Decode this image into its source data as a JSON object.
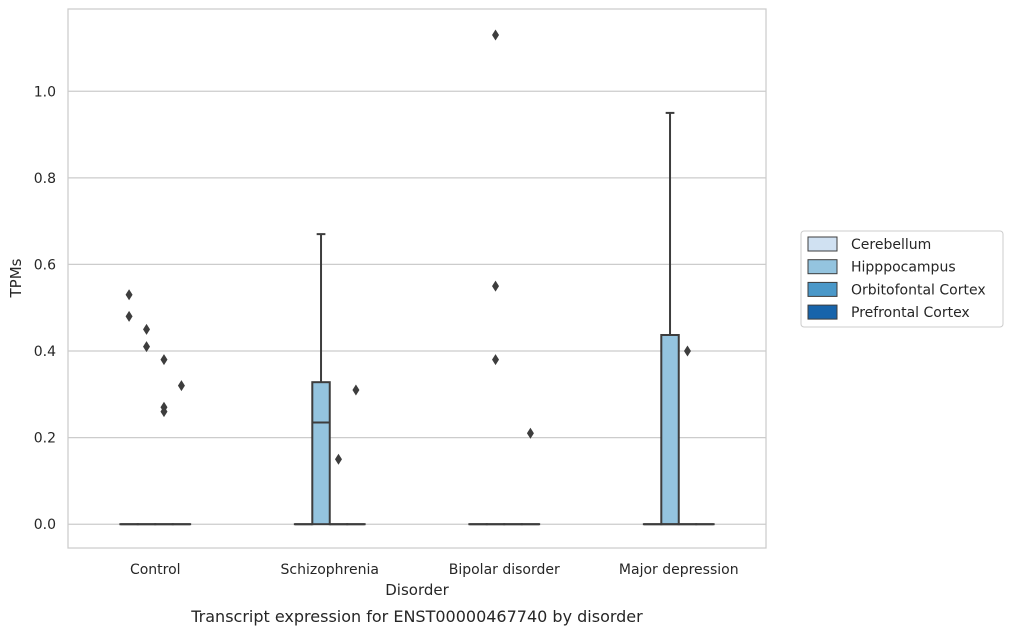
{
  "chart_data": {
    "type": "box",
    "caption": "Transcript expression for ENST00000467740 by disorder",
    "xlabel": "Disorder",
    "ylabel": "TPMs",
    "ylim": [
      -0.055,
      1.19
    ],
    "yticks": [
      0.0,
      0.2,
      0.4,
      0.6,
      0.8,
      1.0
    ],
    "ytick_labels": [
      "0.0",
      "0.2",
      "0.4",
      "0.6",
      "0.8",
      "1.0"
    ],
    "grid": "horizontal",
    "legend_placement": "right",
    "categories": [
      "Control",
      "Schizophrenia",
      "Bipolar disorder",
      "Major depression"
    ],
    "series": [
      {
        "name": "Cerebellum",
        "color": "#d0e1f2"
      },
      {
        "name": "Hipppocampus",
        "color": "#94c4df"
      },
      {
        "name": "Orbitofontal Cortex",
        "color": "#4a98c9"
      },
      {
        "name": "Prefrontal Cortex",
        "color": "#1764ab"
      }
    ],
    "boxes": [
      {
        "category": "Control",
        "series": "Cerebellum",
        "q1": 0,
        "median": 0,
        "q3": 0,
        "whisker_low": 0,
        "whisker_high": 0,
        "outliers": [
          0.53,
          0.48
        ]
      },
      {
        "category": "Control",
        "series": "Hipppocampus",
        "q1": 0,
        "median": 0,
        "q3": 0,
        "whisker_low": 0,
        "whisker_high": 0,
        "outliers": [
          0.45,
          0.41
        ]
      },
      {
        "category": "Control",
        "series": "Orbitofontal Cortex",
        "q1": 0,
        "median": 0,
        "q3": 0,
        "whisker_low": 0,
        "whisker_high": 0,
        "outliers": [
          0.38,
          0.27,
          0.26
        ]
      },
      {
        "category": "Control",
        "series": "Prefrontal Cortex",
        "q1": 0,
        "median": 0,
        "q3": 0,
        "whisker_low": 0,
        "whisker_high": 0,
        "outliers": [
          0.32
        ]
      },
      {
        "category": "Schizophrenia",
        "series": "Cerebellum",
        "q1": 0,
        "median": 0,
        "q3": 0,
        "whisker_low": 0,
        "whisker_high": 0,
        "outliers": []
      },
      {
        "category": "Schizophrenia",
        "series": "Hipppocampus",
        "q1": 0,
        "median": 0.235,
        "q3": 0.328,
        "whisker_low": 0,
        "whisker_high": 0.67,
        "outliers": []
      },
      {
        "category": "Schizophrenia",
        "series": "Orbitofontal Cortex",
        "q1": 0,
        "median": 0,
        "q3": 0,
        "whisker_low": 0,
        "whisker_high": 0,
        "outliers": [
          0.15
        ]
      },
      {
        "category": "Schizophrenia",
        "series": "Prefrontal Cortex",
        "q1": 0,
        "median": 0,
        "q3": 0,
        "whisker_low": 0,
        "whisker_high": 0,
        "outliers": [
          0.31
        ]
      },
      {
        "category": "Bipolar disorder",
        "series": "Cerebellum",
        "q1": 0,
        "median": 0,
        "q3": 0,
        "whisker_low": 0,
        "whisker_high": 0,
        "outliers": []
      },
      {
        "category": "Bipolar disorder",
        "series": "Hipppocampus",
        "q1": 0,
        "median": 0,
        "q3": 0,
        "whisker_low": 0,
        "whisker_high": 0,
        "outliers": [
          1.13,
          0.55,
          0.38
        ]
      },
      {
        "category": "Bipolar disorder",
        "series": "Orbitofontal Cortex",
        "q1": 0,
        "median": 0,
        "q3": 0,
        "whisker_low": 0,
        "whisker_high": 0,
        "outliers": []
      },
      {
        "category": "Bipolar disorder",
        "series": "Prefrontal Cortex",
        "q1": 0,
        "median": 0,
        "q3": 0,
        "whisker_low": 0,
        "whisker_high": 0,
        "outliers": [
          0.21
        ]
      },
      {
        "category": "Major depression",
        "series": "Cerebellum",
        "q1": 0,
        "median": 0,
        "q3": 0,
        "whisker_low": 0,
        "whisker_high": 0,
        "outliers": []
      },
      {
        "category": "Major depression",
        "series": "Hipppocampus",
        "q1": 0,
        "median": 0,
        "q3": 0.437,
        "whisker_low": 0,
        "whisker_high": 0.95,
        "outliers": []
      },
      {
        "category": "Major depression",
        "series": "Orbitofontal Cortex",
        "q1": 0,
        "median": 0,
        "q3": 0,
        "whisker_low": 0,
        "whisker_high": 0,
        "outliers": [
          0.4
        ]
      },
      {
        "category": "Major depression",
        "series": "Prefrontal Cortex",
        "q1": 0,
        "median": 0,
        "q3": 0,
        "whisker_low": 0,
        "whisker_high": 0,
        "outliers": []
      }
    ]
  }
}
